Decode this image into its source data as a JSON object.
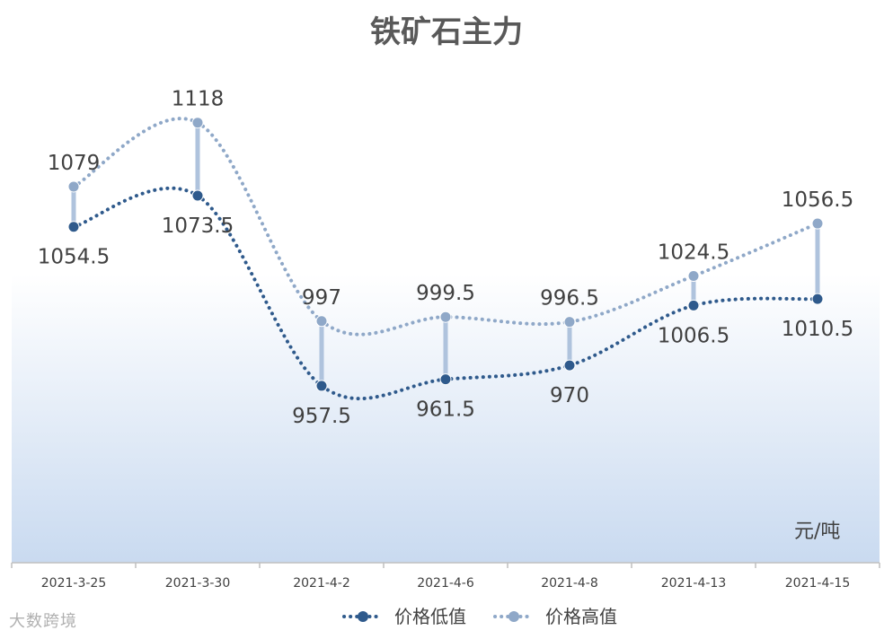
{
  "chart_data": {
    "type": "line",
    "title": "铁矿石主力",
    "unit_label": "元/吨",
    "categories": [
      "2021-3-25",
      "2021-3-30",
      "2021-4-2",
      "2021-4-6",
      "2021-4-8",
      "2021-4-13",
      "2021-4-15"
    ],
    "series": [
      {
        "name": "价格低值",
        "values": [
          1054.5,
          1073.5,
          957.5,
          961.5,
          970,
          1006.5,
          1010.5
        ],
        "labels": [
          "1054.5",
          "1073.5",
          "957.5",
          "961.5",
          "970",
          "1006.5",
          "1010.5"
        ],
        "color": "#2F5A8C",
        "style": "dotted-smooth"
      },
      {
        "name": "价格高值",
        "values": [
          1079,
          1118,
          997,
          999.5,
          996.5,
          1024.5,
          1056.5
        ],
        "labels": [
          "1079",
          "1118",
          "997",
          "999.5",
          "996.5",
          "1024.5",
          "1056.5"
        ],
        "color": "#8FA8C8",
        "style": "dotted-smooth"
      }
    ],
    "high_low_lines": true,
    "high_low_color": "#AFC3DD",
    "ylim": [
      940,
      1130
    ],
    "gridlines": false,
    "legend_position": "bottom",
    "plot_background": "gradient white-to-light-blue"
  },
  "watermark": "大数跨境"
}
